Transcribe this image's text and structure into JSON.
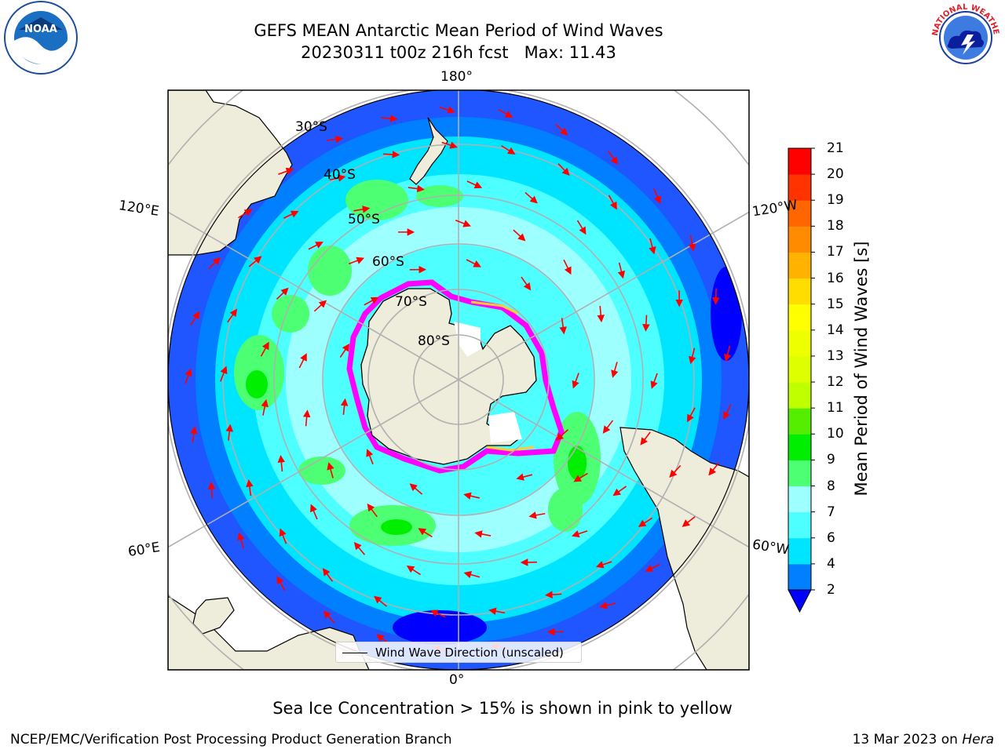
{
  "header": {
    "title": "GEFS MEAN Antarctic Mean Period of Wind Waves",
    "subtitle": "20230311 t00z 216h fcst   Max: 11.43"
  },
  "logos": {
    "left": {
      "icon": "noaa-logo",
      "text": "NOAA"
    },
    "right": {
      "icon": "nws-logo",
      "text": "NATIONAL WEATHER SERVICE"
    }
  },
  "map": {
    "projection": "south-polar-stereographic",
    "longitude_labels": {
      "top": "180°",
      "bottom": "0°",
      "left_upper": "120°E",
      "left_lower": "60°E",
      "right_upper": "120°W",
      "right_lower": "60°W"
    },
    "latitude_labels": [
      "30°S",
      "40°S",
      "50°S",
      "60°S",
      "70°S",
      "80°S"
    ],
    "legend": "Wind Wave Direction (unscaled)",
    "colors": {
      "land": "#eeecda",
      "sea_ice_edge": "#ff00ff",
      "arrow": "#ff0000",
      "grid": "#b0b0b0"
    }
  },
  "colorbar": {
    "label": "Mean Period of Wind Waves [s]",
    "ticks": [
      "2",
      "4",
      "6",
      "7",
      "8",
      "9",
      "10",
      "11",
      "12",
      "13",
      "14",
      "15",
      "16",
      "17",
      "18",
      "19",
      "20",
      "21"
    ],
    "colors": [
      "#0080ff",
      "#00e5ff",
      "#4dffff",
      "#9effff",
      "#4dff73",
      "#00ee00",
      "#55ee00",
      "#bfff00",
      "#ddff00",
      "#eeff00",
      "#ffff00",
      "#ffdd00",
      "#ffb300",
      "#ff8c00",
      "#ff6600",
      "#ff3300",
      "#ff0000"
    ],
    "under_color": "#0000ff"
  },
  "notes": {
    "sea_ice": "Sea Ice Concentration > 15% is shown in pink to yellow"
  },
  "footer": {
    "left": "NCEP/EMC/Verification Post Processing Product Generation Branch",
    "date": "13 Mar 2023 on ",
    "machine": "Hera"
  }
}
